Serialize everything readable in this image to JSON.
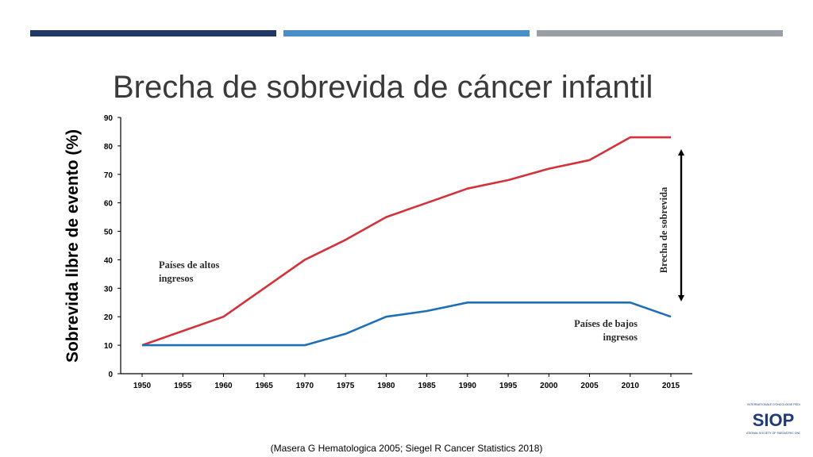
{
  "slide": {
    "title": "Brecha de sobrevida de cáncer infantil",
    "citation": "(Masera G Hematologica 2005; Siegel R Cancer Statistics 2018)",
    "accent_colors": [
      "#1f3864",
      "#4a8fc7",
      "#9a9fa6"
    ]
  },
  "logo": {
    "top_text": "SOCIÉTÉ INTERNATIONALE D'ONCOLOGIE PÉDIATRIQUE",
    "name": "SIOP",
    "bottom_text": "INTERNATIONAL SOCIETY OF PAEDIATRIC ONCOLOGY"
  },
  "chart_data": {
    "type": "line",
    "ylabel": "Sobrevida libre de evento (%)",
    "xlabel": "",
    "ylim": [
      0,
      90
    ],
    "yticks": [
      0,
      10,
      20,
      30,
      40,
      50,
      60,
      70,
      80,
      90
    ],
    "xlim": [
      1950,
      2015
    ],
    "xticks": [
      1950,
      1955,
      1960,
      1965,
      1970,
      1975,
      1980,
      1985,
      1990,
      1995,
      2000,
      2005,
      2010,
      2015
    ],
    "grid": false,
    "series": [
      {
        "name": "Países de altos ingresos",
        "color": "#d2333a",
        "x": [
          1950,
          1960,
          1965,
          1970,
          1975,
          1980,
          1985,
          1990,
          1995,
          2000,
          2005,
          2010,
          2015
        ],
        "values": [
          10,
          20,
          30,
          40,
          47,
          55,
          60,
          65,
          68,
          72,
          75,
          83,
          83
        ]
      },
      {
        "name": "Países de bajos ingresos",
        "color": "#1f6fb5",
        "x": [
          1950,
          1955,
          1960,
          1965,
          1970,
          1975,
          1980,
          1985,
          1990,
          1995,
          2000,
          2005,
          2010,
          2015
        ],
        "values": [
          10,
          10,
          10,
          10,
          10,
          14,
          20,
          22,
          25,
          25,
          25,
          25,
          25,
          20
        ]
      }
    ],
    "annotations": {
      "high_income_label": [
        "Países de altos",
        "ingresos"
      ],
      "low_income_label": [
        "Países de bajos",
        "ingresos"
      ],
      "gap_label": "Brecha de sobrevida"
    }
  }
}
